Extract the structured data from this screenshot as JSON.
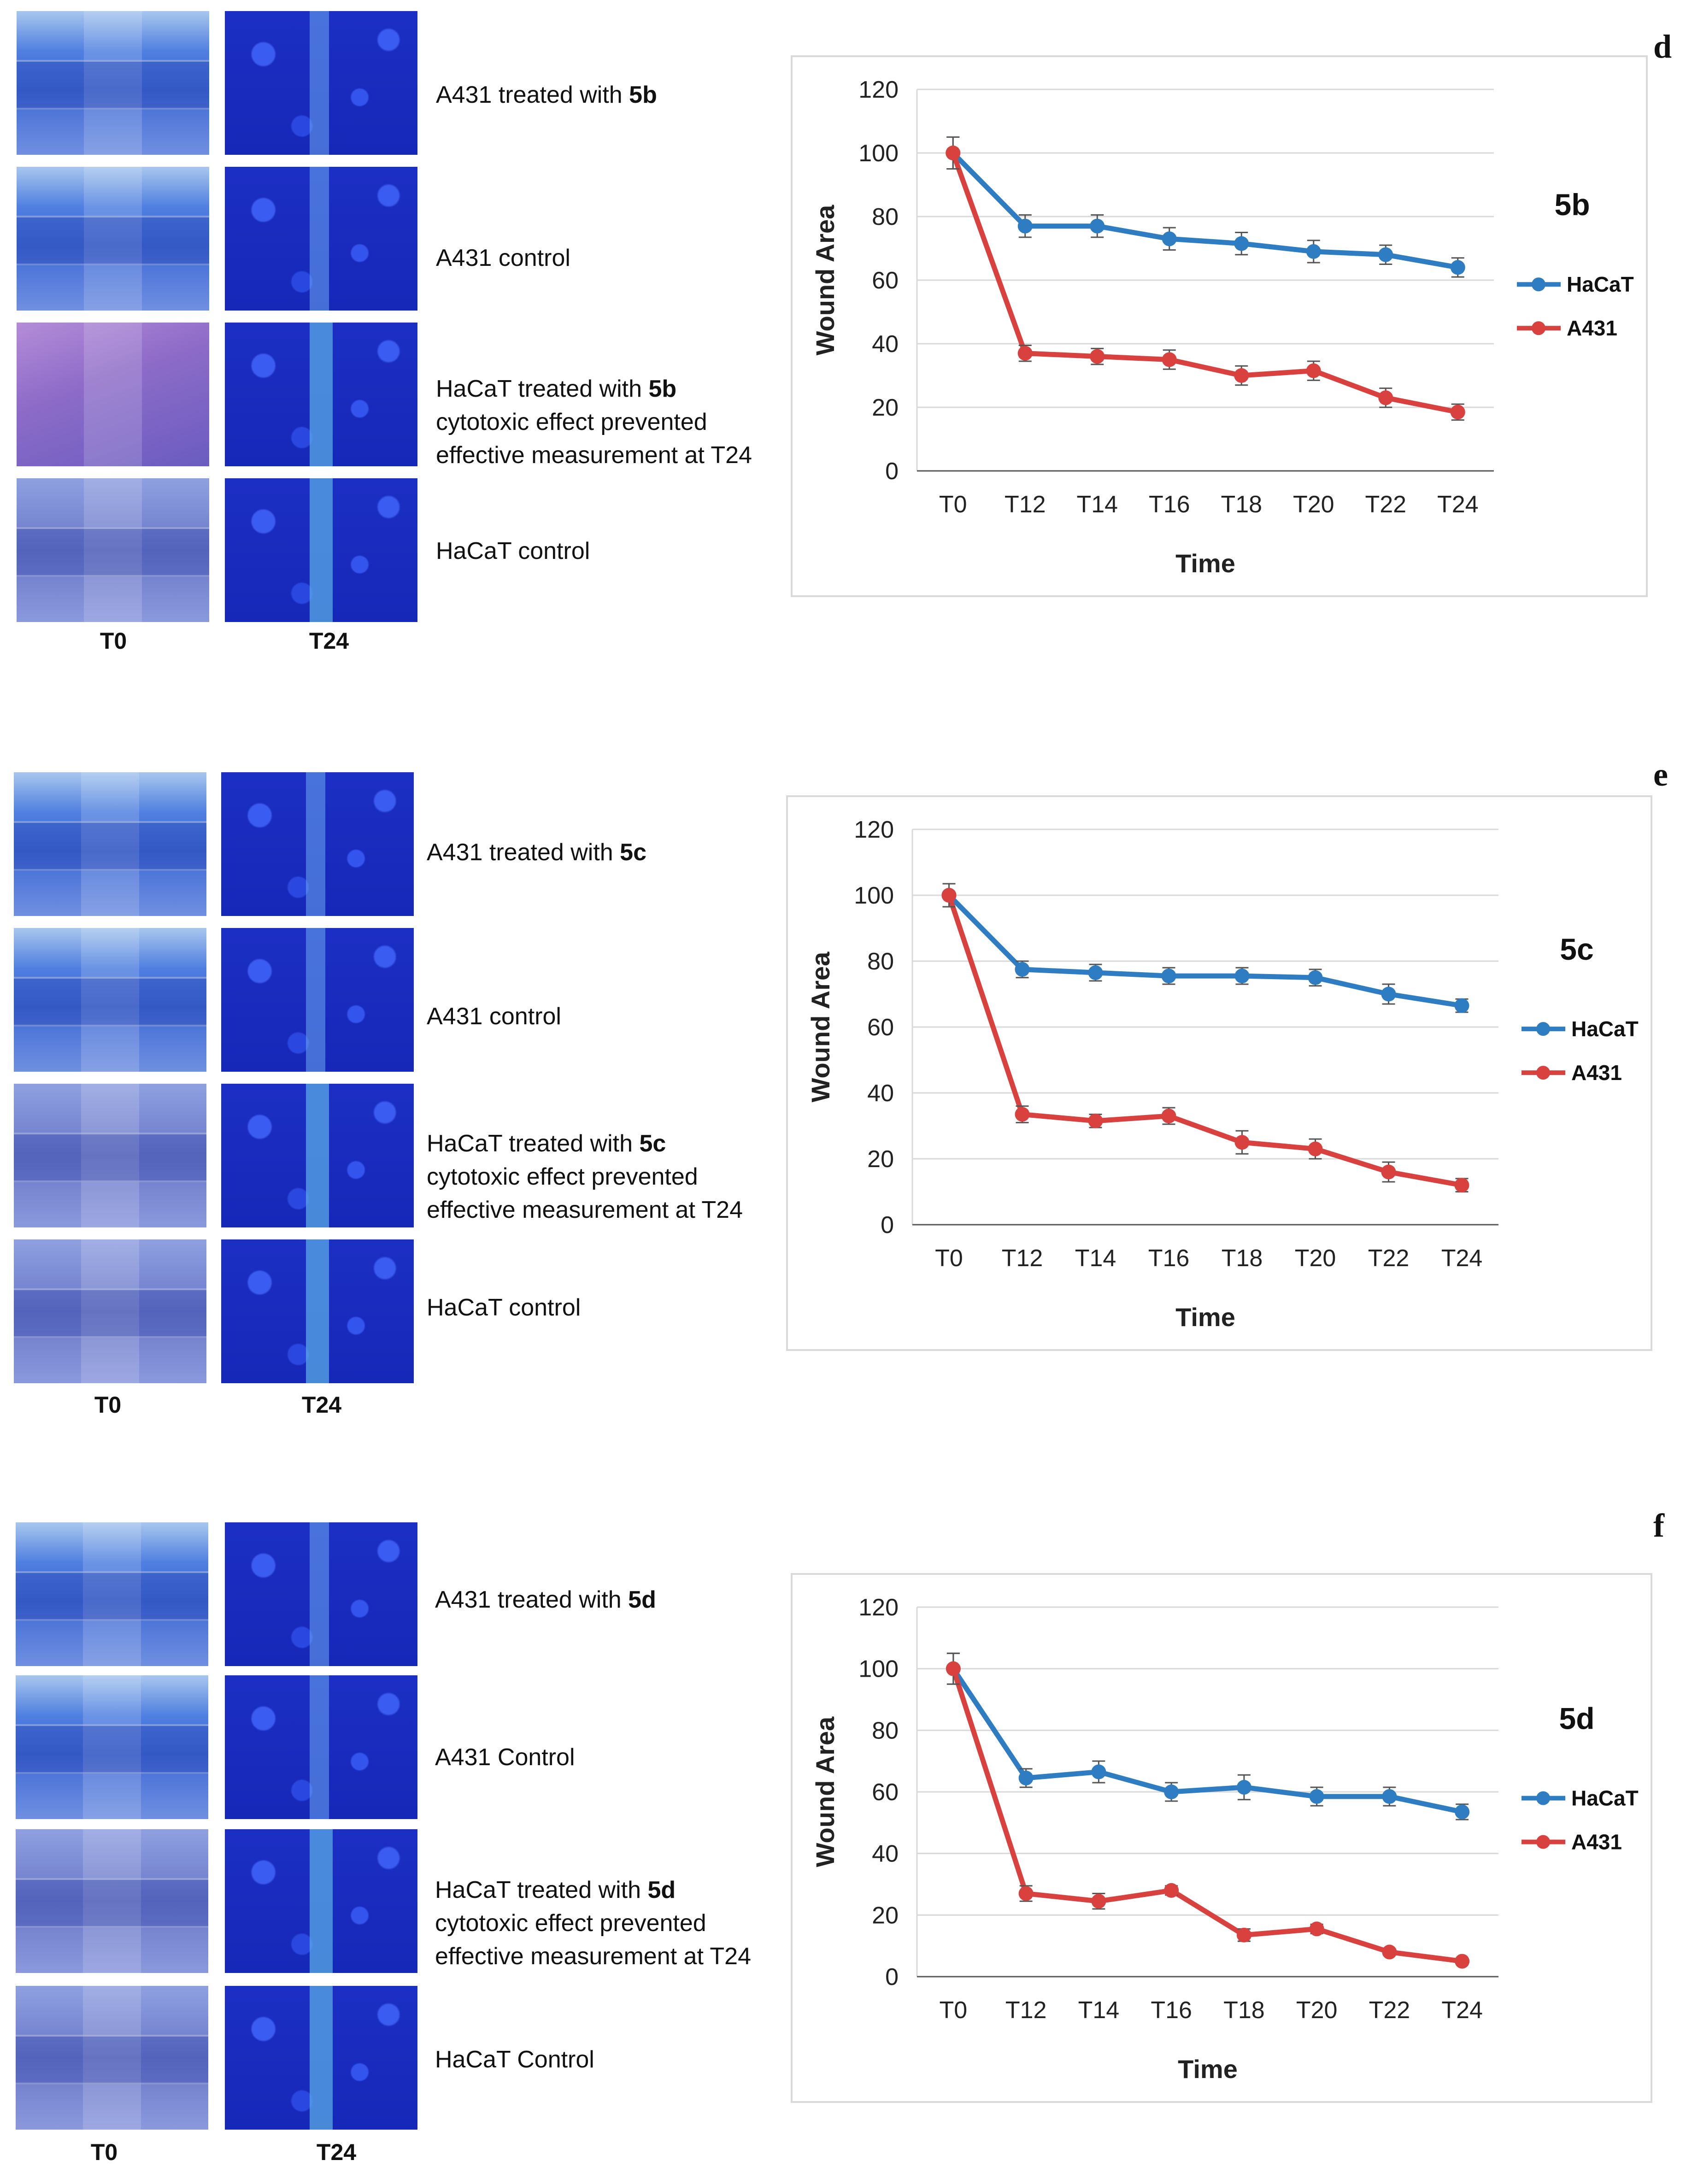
{
  "panels": [
    {
      "letter": "d",
      "rows": [
        {
          "text": "A431 treated with ",
          "bold": "5b"
        },
        {
          "text": "A431 control",
          "bold": ""
        },
        {
          "text": "HaCaT treated with ",
          "bold": "5b",
          "line2": "cytotoxic effect prevented",
          "line3": "effective measurement at T24"
        },
        {
          "text": "HaCaT control",
          "bold": ""
        }
      ],
      "col_labels": [
        "T0",
        "T24"
      ]
    },
    {
      "letter": "e",
      "rows": [
        {
          "text": "A431 treated with ",
          "bold": "5c"
        },
        {
          "text": "A431 control",
          "bold": ""
        },
        {
          "text": "HaCaT treated with ",
          "bold": "5c",
          "line2": "cytotoxic effect prevented",
          "line3": "effective measurement at T24"
        },
        {
          "text": "HaCaT control",
          "bold": ""
        }
      ],
      "col_labels": [
        "T0",
        "T24"
      ]
    },
    {
      "letter": "f",
      "rows": [
        {
          "text": "A431 treated with ",
          "bold": "5d"
        },
        {
          "text": "A431 Control",
          "bold": ""
        },
        {
          "text": "HaCaT treated with ",
          "bold": "5d",
          "line2": "cytotoxic effect prevented",
          "line3": "effective measurement at T24"
        },
        {
          "text": "HaCaT Control",
          "bold": ""
        }
      ],
      "col_labels": [
        "T0",
        "T24"
      ]
    }
  ],
  "colors": {
    "HaCaT": "#2e7dc2",
    "A431": "#d9413f",
    "grid": "#d9d9d9",
    "axis": "#595959"
  },
  "chart_data": [
    {
      "type": "line",
      "title": "5b",
      "xlabel": "Time",
      "ylabel": "Wound Area",
      "ylim": [
        0,
        120
      ],
      "yticks": [
        0,
        20,
        40,
        60,
        80,
        100,
        120
      ],
      "x": [
        "T0",
        "T12",
        "T14",
        "T16",
        "T18",
        "T20",
        "T22",
        "T24"
      ],
      "legend": "right",
      "series": [
        {
          "name": "HaCaT",
          "values": [
            100,
            77,
            77,
            73,
            71.5,
            69,
            68,
            64
          ],
          "errors": [
            5,
            3.5,
            3.5,
            3.5,
            3.5,
            3.5,
            3,
            3
          ]
        },
        {
          "name": "A431",
          "values": [
            100,
            37,
            36,
            35,
            30,
            31.5,
            23,
            18.5
          ],
          "errors": [
            5,
            2.5,
            2.5,
            3,
            3,
            3,
            3,
            2.5
          ]
        }
      ]
    },
    {
      "type": "line",
      "title": "5c",
      "xlabel": "Time",
      "ylabel": "Wound Area",
      "ylim": [
        0,
        120
      ],
      "yticks": [
        0,
        20,
        40,
        60,
        80,
        100,
        120
      ],
      "x": [
        "T0",
        "T12",
        "T14",
        "T16",
        "T18",
        "T20",
        "T22",
        "T24"
      ],
      "legend": "right",
      "series": [
        {
          "name": "HaCaT",
          "values": [
            100,
            77.5,
            76.5,
            75.5,
            75.5,
            75,
            70,
            66.5
          ],
          "errors": [
            3.5,
            2.5,
            2.5,
            2.5,
            2.5,
            2.5,
            3,
            2
          ]
        },
        {
          "name": "A431",
          "values": [
            100,
            33.5,
            31.5,
            33,
            25,
            23,
            16,
            12
          ],
          "errors": [
            3.5,
            2.5,
            2,
            2.5,
            3.5,
            3,
            3,
            2
          ]
        }
      ]
    },
    {
      "type": "line",
      "title": "5d",
      "xlabel": "Time",
      "ylabel": "Wound Area",
      "ylim": [
        0,
        120
      ],
      "yticks": [
        0,
        20,
        40,
        60,
        80,
        100,
        120
      ],
      "x": [
        "T0",
        "T12",
        "T14",
        "T16",
        "T18",
        "T20",
        "T22",
        "T24"
      ],
      "legend": "right",
      "series": [
        {
          "name": "HaCaT",
          "values": [
            100,
            64.5,
            66.5,
            60,
            61.5,
            58.5,
            58.5,
            53.5
          ],
          "errors": [
            5,
            3,
            3.5,
            3,
            4,
            3,
            3,
            2.5
          ]
        },
        {
          "name": "A431",
          "values": [
            100,
            27,
            24.5,
            28,
            13.5,
            15.5,
            8,
            5
          ],
          "errors": [
            5,
            2.5,
            2.5,
            1.5,
            2,
            1.5,
            1,
            0.5
          ]
        }
      ]
    }
  ]
}
